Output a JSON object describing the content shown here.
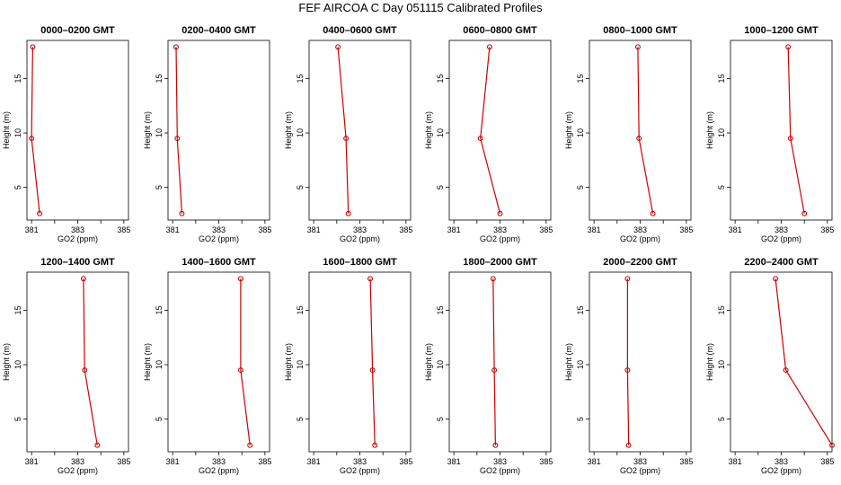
{
  "page": {
    "title": "FEF AIRCOA C  Day 051115  Calibrated Profiles"
  },
  "chart_data": {
    "type": "line",
    "title": "FEF AIRCOA C  Day 051115  Calibrated Profiles",
    "xlabel": "GO2 (ppm)",
    "ylabel": "Height (m)",
    "xlim": [
      380.8,
      385.2
    ],
    "ylim": [
      2.0,
      18.5
    ],
    "xticks": [
      381,
      382,
      383,
      384,
      385
    ],
    "xtick_labels": [
      "381",
      "",
      "383",
      "",
      "385"
    ],
    "yticks": [
      5,
      10,
      15
    ],
    "heights": [
      17.9,
      9.5,
      2.6
    ],
    "series_color": "#cc0000",
    "grid": false,
    "panels": [
      {
        "title": "0000–0200 GMT",
        "values": [
          381.05,
          381.0,
          381.35
        ]
      },
      {
        "title": "0200–0400 GMT",
        "values": [
          381.15,
          381.2,
          381.4
        ]
      },
      {
        "title": "0400–0600 GMT",
        "values": [
          382.05,
          382.4,
          382.5
        ]
      },
      {
        "title": "0600–0800 GMT",
        "values": [
          382.55,
          382.15,
          383.0
        ]
      },
      {
        "title": "0800–1000 GMT",
        "values": [
          382.9,
          382.95,
          383.55
        ]
      },
      {
        "title": "1000–1200 GMT",
        "values": [
          383.3,
          383.4,
          384.0
        ]
      },
      {
        "title": "1200–1400 GMT",
        "values": [
          383.25,
          383.3,
          383.85
        ]
      },
      {
        "title": "1400–1600 GMT",
        "values": [
          383.95,
          383.95,
          384.35
        ]
      },
      {
        "title": "1600–1800 GMT",
        "values": [
          383.45,
          383.55,
          383.65
        ]
      },
      {
        "title": "1800–2000 GMT",
        "values": [
          382.7,
          382.75,
          382.8
        ]
      },
      {
        "title": "2000–2200 GMT",
        "values": [
          382.45,
          382.45,
          382.5
        ]
      },
      {
        "title": "2200–2400 GMT",
        "values": [
          382.75,
          383.2,
          385.2
        ]
      }
    ]
  }
}
